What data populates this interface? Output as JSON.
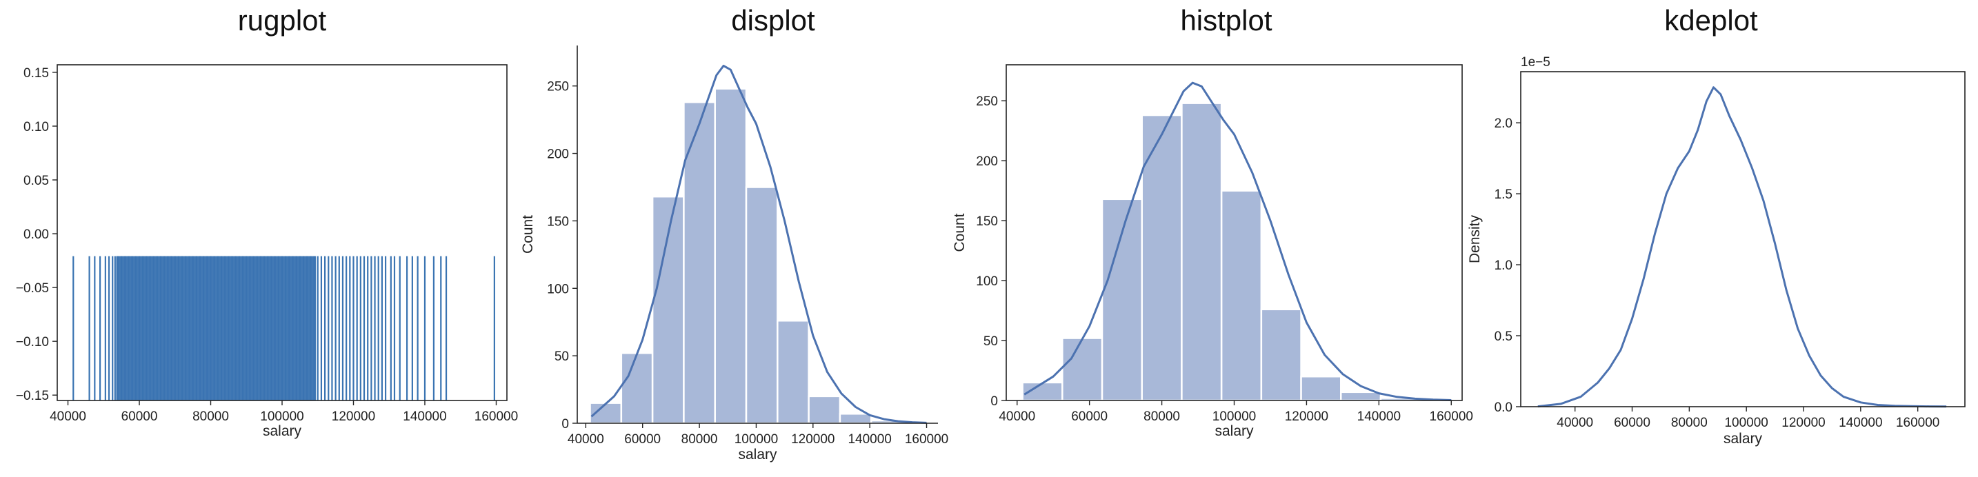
{
  "chart_data": [
    {
      "type": "rug",
      "title": "rugplot",
      "xlabel": "salary",
      "ylabel": "",
      "xlim": [
        37000,
        163000
      ],
      "ylim": [
        -0.155,
        0.157
      ],
      "xticks": [
        40000,
        60000,
        80000,
        100000,
        120000,
        140000,
        160000
      ],
      "yticks": [
        -0.15,
        -0.1,
        -0.05,
        0.0,
        0.05,
        0.1,
        0.15
      ],
      "ytick_labels": [
        "−0.15",
        "−0.10",
        "−0.05",
        "0.00",
        "0.05",
        "0.10",
        "0.15"
      ],
      "rug_height_fraction": 0.43,
      "x": [
        41500,
        46000,
        47500,
        49000,
        50500,
        51500,
        52500,
        53200,
        54000,
        55000,
        56000,
        57000,
        58000,
        59000,
        60000,
        61000,
        62000,
        63000,
        64000,
        65000,
        66000,
        67000,
        68000,
        69000,
        70000,
        71000,
        72000,
        73000,
        74000,
        75000,
        76000,
        77000,
        78000,
        79000,
        80000,
        81000,
        82000,
        83000,
        84000,
        85000,
        86000,
        87000,
        88000,
        89000,
        90000,
        91000,
        92000,
        93000,
        94000,
        95000,
        96000,
        97000,
        98000,
        99000,
        100000,
        101000,
        102000,
        103000,
        104000,
        105000,
        106000,
        107000,
        108000,
        109000,
        110000,
        111000,
        112000,
        113000,
        114000,
        115000,
        116000,
        117000,
        118000,
        119000,
        120000,
        121000,
        122000,
        123000,
        124000,
        125000,
        126000,
        127000,
        128000,
        129000,
        130500,
        131500,
        133000,
        135000,
        136500,
        138000,
        140000,
        142500,
        144500,
        146000,
        159500
      ],
      "color": "#3a74b2"
    },
    {
      "type": "histogram_kde",
      "title": "displot",
      "xlabel": "salary",
      "ylabel": "Count",
      "xlim": [
        37000,
        164000
      ],
      "ylim": [
        0,
        280
      ],
      "xticks": [
        40000,
        60000,
        80000,
        100000,
        120000,
        140000,
        160000
      ],
      "yticks": [
        0,
        50,
        100,
        150,
        200,
        250
      ],
      "bin_edges": [
        41500,
        52500,
        63500,
        74500,
        85500,
        96500,
        107500,
        118500,
        129500,
        140500,
        151500,
        162500
      ],
      "counts": [
        15,
        52,
        168,
        238,
        248,
        175,
        76,
        20,
        7,
        2,
        1
      ],
      "kde_x": [
        42000,
        50000,
        55000,
        60000,
        65000,
        70000,
        75000,
        80000,
        83000,
        86000,
        88500,
        91000,
        94000,
        97000,
        100000,
        105000,
        110000,
        115000,
        120000,
        125000,
        130000,
        135000,
        140000,
        145000,
        150000,
        155000,
        160000
      ],
      "kde_y": [
        5,
        20,
        35,
        62,
        100,
        150,
        195,
        222,
        240,
        258,
        265,
        262,
        248,
        234,
        222,
        190,
        150,
        105,
        65,
        38,
        22,
        12,
        6,
        3,
        1.5,
        0.7,
        0.3
      ],
      "bar_color": "#a8b8d8",
      "line_color": "#4c72b0"
    },
    {
      "type": "histogram_kde",
      "title": "histplot",
      "xlabel": "salary",
      "ylabel": "Count",
      "xlim": [
        37000,
        163000
      ],
      "ylim": [
        0,
        280
      ],
      "xticks": [
        40000,
        60000,
        80000,
        100000,
        120000,
        140000,
        160000
      ],
      "yticks": [
        0,
        50,
        100,
        150,
        200,
        250
      ],
      "bin_edges": [
        41500,
        52500,
        63500,
        74500,
        85500,
        96500,
        107500,
        118500,
        129500,
        140500,
        151500,
        162500
      ],
      "counts": [
        15,
        52,
        168,
        238,
        248,
        175,
        76,
        20,
        7,
        2,
        1
      ],
      "kde_x": [
        42000,
        50000,
        55000,
        60000,
        65000,
        70000,
        75000,
        80000,
        83000,
        86000,
        88500,
        91000,
        94000,
        97000,
        100000,
        105000,
        110000,
        115000,
        120000,
        125000,
        130000,
        135000,
        140000,
        145000,
        150000,
        155000,
        160000
      ],
      "kde_y": [
        5,
        20,
        35,
        62,
        100,
        150,
        195,
        222,
        240,
        258,
        265,
        262,
        248,
        234,
        222,
        190,
        150,
        105,
        65,
        38,
        22,
        12,
        6,
        3,
        1.5,
        0.7,
        0.3
      ],
      "bar_color": "#a8b8d8",
      "line_color": "#4c72b0"
    },
    {
      "type": "line",
      "title": "kdeplot",
      "xlabel": "salary",
      "ylabel": "Density",
      "offset_label": "1e−5",
      "xlim": [
        21000,
        176500
      ],
      "ylim": [
        0,
        2.36
      ],
      "xticks": [
        40000,
        60000,
        80000,
        100000,
        120000,
        140000,
        160000
      ],
      "yticks": [
        0.0,
        0.5,
        1.0,
        1.5,
        2.0
      ],
      "ytick_labels": [
        "0.0",
        "0.5",
        "1.0",
        "1.5",
        "2.0"
      ],
      "x": [
        27000,
        35000,
        42000,
        48000,
        52000,
        56000,
        60000,
        64000,
        68000,
        72000,
        76000,
        80000,
        83000,
        86000,
        88500,
        91000,
        94000,
        98000,
        102000,
        106000,
        110000,
        114000,
        118000,
        122000,
        126000,
        130000,
        134000,
        140000,
        146000,
        152000,
        158000,
        164000,
        170000
      ],
      "y": [
        0.002,
        0.02,
        0.07,
        0.17,
        0.27,
        0.4,
        0.62,
        0.9,
        1.22,
        1.5,
        1.68,
        1.8,
        1.95,
        2.15,
        2.25,
        2.2,
        2.05,
        1.88,
        1.68,
        1.45,
        1.15,
        0.82,
        0.55,
        0.36,
        0.22,
        0.13,
        0.07,
        0.03,
        0.012,
        0.006,
        0.004,
        0.002,
        0.001
      ],
      "line_color": "#4c72b0"
    }
  ]
}
